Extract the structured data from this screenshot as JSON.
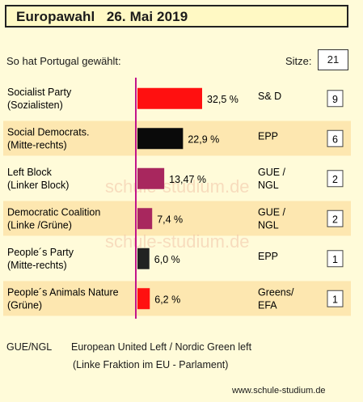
{
  "header": {
    "title": "Europawahl   26. Mai 2019"
  },
  "subtitle": "So hat Portugal gewählt:",
  "seats_label": "Sitze:",
  "seats_total": "21",
  "watermark": "schule-studium.de",
  "colors": {
    "background": "#fffbd9",
    "row_band": "#fde7b0",
    "axis_line": "#c2158a"
  },
  "chart_data": {
    "type": "bar",
    "orientation": "horizontal",
    "categories": [
      [
        "Socialist Party",
        "(Sozialisten)"
      ],
      [
        "Social Democrats.",
        "(Mitte-rechts)"
      ],
      [
        "Left Block",
        "(Linker Block)"
      ],
      [
        "Democratic Coalition",
        "(Linke /Grüne)"
      ],
      [
        "People´s Party",
        "(Mitte-rechts)"
      ],
      [
        "People´s Animals Nature",
        "(Grüne)"
      ]
    ],
    "values": [
      32.5,
      22.9,
      13.47,
      7.4,
      6.0,
      6.2
    ],
    "value_labels": [
      "32,5 %",
      "22,9 %",
      "13,47 %",
      "7,4 %",
      "6,0 %",
      "6,2 %"
    ],
    "bar_colors": [
      "#ff1010",
      "#0a0a0a",
      "#a8275e",
      "#a8275e",
      "#222222",
      "#ff1010"
    ],
    "groups": [
      [
        "S& D"
      ],
      [
        "EPP"
      ],
      [
        "GUE /",
        "NGL"
      ],
      [
        "GUE /",
        "NGL"
      ],
      [
        "EPP"
      ],
      [
        "Greens/",
        "EFA"
      ]
    ],
    "seats": [
      "9",
      "6",
      "2",
      "2",
      "1",
      "1"
    ],
    "xlim": [
      0,
      32.5
    ]
  },
  "footnotes": {
    "abbr": "GUE/NGL",
    "line1": "European United Left / Nordic Green left",
    "line2": "(Linke Fraktion im EU - Parlament)"
  },
  "source": "www.schule-studium.de"
}
